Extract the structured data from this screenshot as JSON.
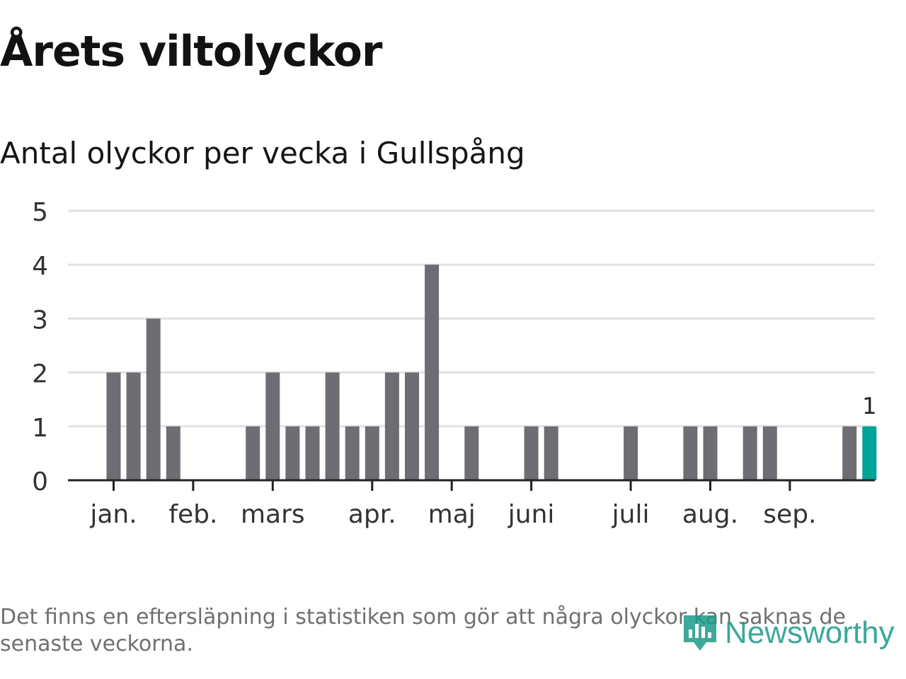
{
  "title": "Årets viltolyckor",
  "subtitle": "Antal olyckor per vecka i Gullspång",
  "footnote": "Det finns en eftersläpning i statistiken som gör att några olyckor kan saknas de senaste veckorna.",
  "logo": {
    "text": "Newsworthy",
    "icon": "newsworthy-logo-icon"
  },
  "colors": {
    "bar": "#6e6d73",
    "highlight": "#00a39a",
    "grid": "#e1e1e1",
    "axis": "#222222",
    "text": "#333333"
  },
  "chart_data": {
    "type": "bar",
    "title": "Antal olyckor per vecka i Gullspång",
    "xlabel": "",
    "ylabel": "",
    "ylim": [
      0,
      5
    ],
    "yticks": [
      0,
      1,
      2,
      3,
      4,
      5
    ],
    "grid": true,
    "weeks": [
      1,
      2,
      3,
      4,
      5,
      6,
      7,
      8,
      9,
      10,
      11,
      12,
      13,
      14,
      15,
      16,
      17,
      18,
      19,
      20,
      21,
      22,
      23,
      24,
      25,
      26,
      27,
      28,
      29,
      30,
      31,
      32,
      33,
      34,
      35,
      36,
      37,
      38,
      39
    ],
    "values": [
      2,
      2,
      3,
      1,
      0,
      0,
      0,
      1,
      2,
      1,
      1,
      2,
      1,
      1,
      2,
      2,
      4,
      0,
      1,
      0,
      0,
      1,
      1,
      0,
      0,
      0,
      1,
      0,
      0,
      1,
      1,
      0,
      1,
      1,
      0,
      0,
      0,
      1,
      1
    ],
    "highlight_index": 38,
    "highlight_label": "1",
    "month_ticks": [
      {
        "label": "jan.",
        "week": 0.72
      },
      {
        "label": "feb.",
        "week": 4.72
      },
      {
        "label": "mars",
        "week": 8.72
      },
      {
        "label": "apr.",
        "week": 13.72
      },
      {
        "label": "maj",
        "week": 17.72
      },
      {
        "label": "juni",
        "week": 21.72
      },
      {
        "label": "juli",
        "week": 26.72
      },
      {
        "label": "aug.",
        "week": 30.72
      },
      {
        "label": "sep.",
        "week": 34.72
      }
    ]
  }
}
